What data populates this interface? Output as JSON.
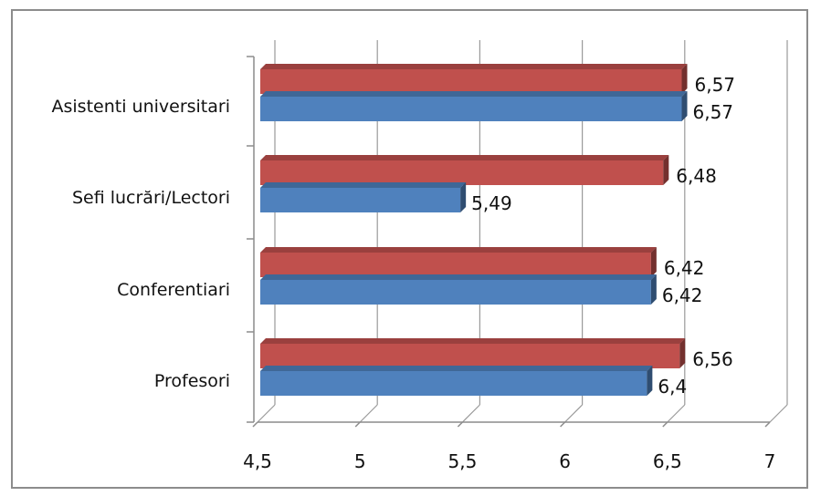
{
  "chart_data": {
    "type": "bar",
    "orientation": "horizontal",
    "style": "3d",
    "categories": [
      "Profesori",
      "Conferentiari",
      "Sefi lucrări/Lectori",
      "Asistenti universitari"
    ],
    "series": [
      {
        "values": [
          6.4,
          6.42,
          5.49,
          6.57
        ],
        "color": "#4f81bd",
        "labels": [
          "6,4",
          "6,42",
          "5,49",
          "6,57"
        ]
      },
      {
        "values": [
          6.56,
          6.42,
          6.48,
          6.57
        ],
        "color": "#c0504d",
        "labels": [
          "6,56",
          "6,42",
          "6,48",
          "6,57"
        ]
      }
    ],
    "xlim": [
      4.5,
      7
    ],
    "xticks": [
      4.5,
      5,
      5.5,
      6,
      6.5,
      7
    ],
    "xtick_labels": [
      "4,5",
      "5",
      "5,5",
      "6",
      "6,5",
      "7"
    ],
    "grid": true,
    "legend": "none"
  }
}
